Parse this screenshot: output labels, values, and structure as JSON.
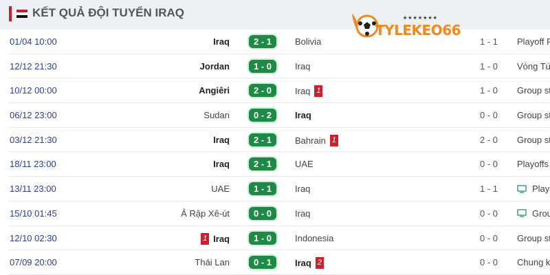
{
  "header": {
    "title": "KẾT QUẢ ĐỘI TUYỂN IRAQ",
    "flag_icon": "iraq-flag-icon"
  },
  "logo": {
    "text": "TYLEKEO66"
  },
  "colors": {
    "score_bg": "#1e8a45",
    "red_card": "#d02030",
    "date": "#2a3d9e"
  },
  "matches": [
    {
      "date": "01/04 10:00",
      "home": "Iraq",
      "home_bold": true,
      "home_cards": "",
      "score": "2 - 1",
      "away": "Bolivia",
      "away_bold": false,
      "away_cards": "",
      "ht": "1 - 1",
      "tv": false,
      "competition": "Playoff F"
    },
    {
      "date": "12/12 21:30",
      "home": "Jordan",
      "home_bold": true,
      "home_cards": "",
      "score": "1 - 0",
      "away": "Iraq",
      "away_bold": false,
      "away_cards": "",
      "ht": "1 - 0",
      "tv": false,
      "competition": "Vòng Tứ"
    },
    {
      "date": "10/12 00:00",
      "home": "Angiêri",
      "home_bold": true,
      "home_cards": "",
      "score": "2 - 0",
      "away": "Iraq",
      "away_bold": false,
      "away_cards": "1",
      "ht": "1 - 0",
      "tv": false,
      "competition": "Group st"
    },
    {
      "date": "06/12 23:00",
      "home": "Sudan",
      "home_bold": false,
      "home_cards": "",
      "score": "0 - 2",
      "away": "Iraq",
      "away_bold": true,
      "away_cards": "",
      "ht": "0 - 0",
      "tv": false,
      "competition": "Group st"
    },
    {
      "date": "03/12 21:30",
      "home": "Iraq",
      "home_bold": true,
      "home_cards": "",
      "score": "2 - 1",
      "away": "Bahrain",
      "away_bold": false,
      "away_cards": "1",
      "ht": "2 - 0",
      "tv": false,
      "competition": "Group st"
    },
    {
      "date": "18/11 23:00",
      "home": "Iraq",
      "home_bold": true,
      "home_cards": "",
      "score": "2 - 1",
      "away": "UAE",
      "away_bold": false,
      "away_cards": "",
      "ht": "0 - 0",
      "tv": false,
      "competition": "Playoffs"
    },
    {
      "date": "13/11 23:00",
      "home": "UAE",
      "home_bold": false,
      "home_cards": "",
      "score": "1 - 1",
      "away": "Iraq",
      "away_bold": false,
      "away_cards": "",
      "ht": "1 - 1",
      "tv": true,
      "competition": "Playo"
    },
    {
      "date": "15/10 01:45",
      "home": "Ả Rập Xê-út",
      "home_bold": false,
      "home_cards": "",
      "score": "0 - 0",
      "away": "Iraq",
      "away_bold": false,
      "away_cards": "",
      "ht": "0 - 0",
      "tv": true,
      "competition": "Grou"
    },
    {
      "date": "12/10 02:30",
      "home": "Iraq",
      "home_bold": true,
      "home_cards": "1",
      "score": "1 - 0",
      "away": "Indonesia",
      "away_bold": false,
      "away_cards": "",
      "ht": "0 - 0",
      "tv": false,
      "competition": "Group st"
    },
    {
      "date": "07/09 20:00",
      "home": "Thái Lan",
      "home_bold": false,
      "home_cards": "",
      "score": "0 - 1",
      "away": "Iraq",
      "away_bold": true,
      "away_cards": "2",
      "ht": "0 - 0",
      "tv": false,
      "competition": "Chung k"
    }
  ]
}
